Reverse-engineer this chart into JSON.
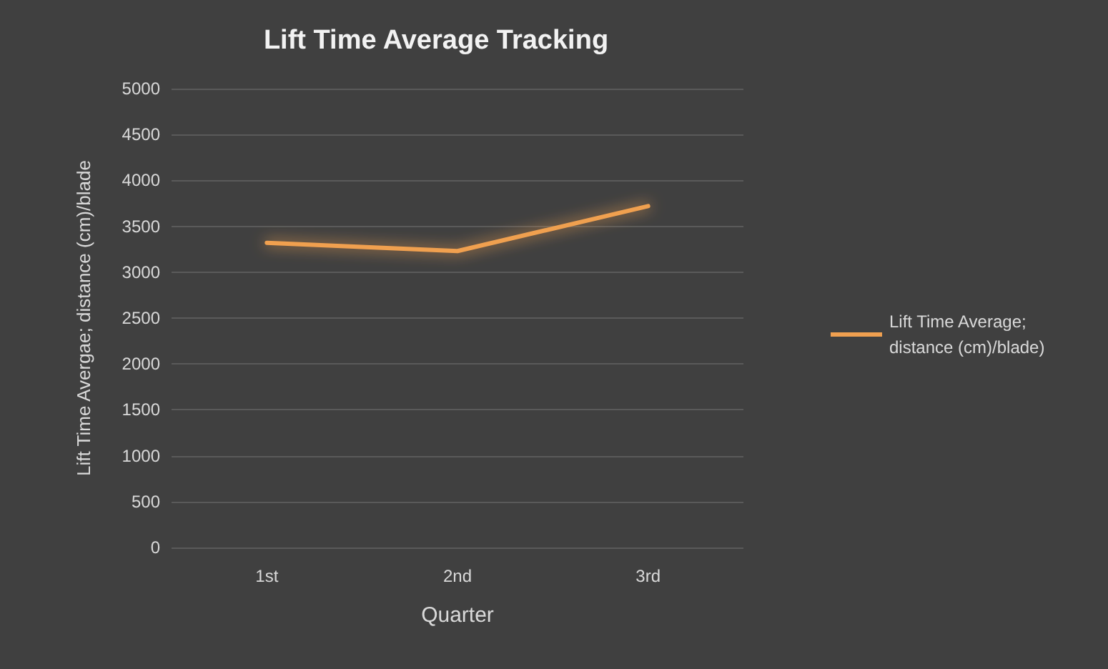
{
  "chart_data": {
    "type": "line",
    "title": "Lift Time Average Tracking",
    "xlabel": "Quarter",
    "ylabel": "Lift Time Avergae; distance (cm)/blade",
    "categories": [
      "1st",
      "2nd",
      "3rd"
    ],
    "series": [
      {
        "name": "Lift Time Average; distance (cm)/blade)",
        "color": "#f0a050",
        "values": [
          3320,
          3230,
          3720
        ]
      }
    ],
    "ylim": [
      0,
      5000
    ],
    "yticks": [
      0,
      500,
      1000,
      1500,
      2000,
      2500,
      3000,
      3500,
      4000,
      4500,
      5000
    ],
    "grid": "y",
    "legend": "right",
    "marker": "none"
  }
}
